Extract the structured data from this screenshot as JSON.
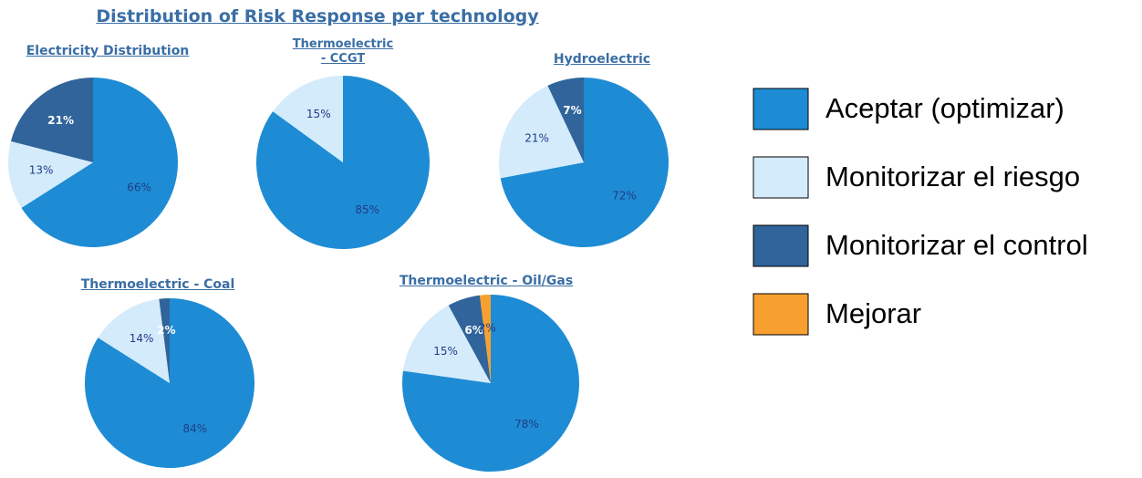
{
  "title": "Distribution of Risk Response per technology",
  "legend": {
    "names": [
      "Aceptar (optimizar)",
      "Monitorizar el riesgo",
      "Monitorizar el control",
      "Mejorar"
    ],
    "colors": [
      "#1e8cd4",
      "#d4ebfb",
      "#30649a",
      "#f7a030"
    ]
  },
  "chart_data": [
    {
      "type": "pie",
      "title": "Electricity Distribution",
      "values": [
        66,
        13,
        21,
        null
      ],
      "value_labels": [
        "66%",
        "13%",
        "21%",
        null
      ]
    },
    {
      "type": "pie",
      "title": "Thermoelectric - CCGT",
      "values": [
        85,
        15,
        null,
        null
      ],
      "value_labels": [
        "85%",
        "15%",
        null,
        null
      ]
    },
    {
      "type": "pie",
      "title": "Hydroelectric",
      "values": [
        72,
        21,
        7,
        null
      ],
      "value_labels": [
        "72%",
        "21%",
        "7%",
        null
      ]
    },
    {
      "type": "pie",
      "title": "Thermoelectric - Coal",
      "values": [
        84,
        14,
        2,
        null
      ],
      "value_labels": [
        "84%",
        "14%",
        "2%",
        null
      ]
    },
    {
      "type": "pie",
      "title": "Thermoelectric - Oil/Gas",
      "values": [
        78,
        15,
        6,
        2
      ],
      "value_labels": [
        "78%",
        "15%",
        "6%",
        "2%"
      ]
    }
  ]
}
